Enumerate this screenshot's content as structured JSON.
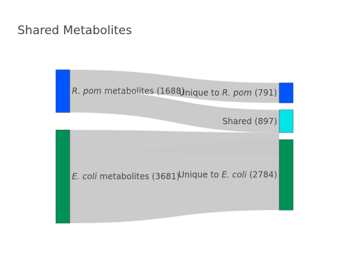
{
  "title": "Shared Metabolites",
  "chart_data": {
    "type": "sankey",
    "title": "Shared Metabolites",
    "nodes": [
      {
        "id": "rpom",
        "name_italic": "R. pom",
        "name_rest": " metabolites (1688)",
        "value": 1688,
        "color": "#0055ff"
      },
      {
        "id": "ecoli",
        "name_italic": "E. coli",
        "name_rest": " metabolites (3681)",
        "value": 3681,
        "color": "#00905a"
      },
      {
        "id": "unique_rpom",
        "name_prefix": "Unique to ",
        "name_italic": "R. pom",
        "name_rest": " (791)",
        "value": 791,
        "color": "#0055ff"
      },
      {
        "id": "shared",
        "name_prefix": "Shared (897)",
        "value": 897,
        "color": "#00e5e5"
      },
      {
        "id": "unique_ecoli",
        "name_prefix": "Unique to ",
        "name_italic": "E. coli",
        "name_rest": " (2784)",
        "value": 2784,
        "color": "#00905a"
      }
    ],
    "links": [
      {
        "source": "rpom",
        "target": "unique_rpom",
        "value": 791
      },
      {
        "source": "rpom",
        "target": "shared",
        "value": 897
      },
      {
        "source": "ecoli",
        "target": "shared",
        "value": 897
      },
      {
        "source": "ecoli",
        "target": "unique_ecoli",
        "value": 2784
      }
    ],
    "link_color": "#c8c8c8"
  }
}
